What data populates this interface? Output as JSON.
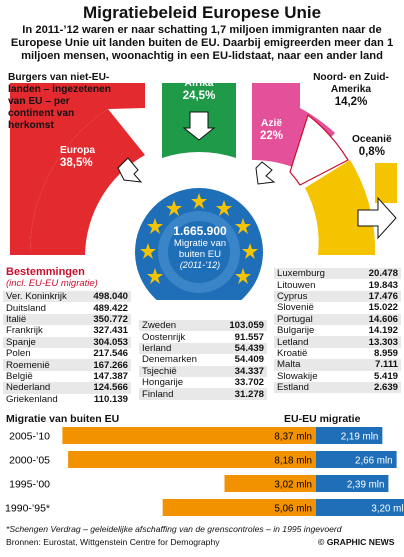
{
  "title": "Migratiebeleid Europese Unie",
  "intro": "In 2011-’12 waren er naar schatting 1,7 miljoen immigranten naar de Europese Unie uit landen buiten de EU. Daarbij emigreerden meer dan 1 miljoen mensen, woonachtig in een EU-lidstaat, naar een ander land",
  "colors": {
    "europa": "#e32a2f",
    "afrika": "#1f9a48",
    "azie": "#e4509a",
    "oceanie": "#f5c400",
    "eu_blue": "#1f6fb8",
    "orange": "#f39200",
    "red_text": "#c8102e"
  },
  "origins": {
    "intro_label": "Burgers van niet-EU-landen – ingezetenen van EU – per continent van herkomst",
    "segments": [
      {
        "name": "Europa",
        "value": "38,5%"
      },
      {
        "name": "Afrika",
        "value": "24,5%"
      },
      {
        "name": "Azië",
        "value": "22%"
      },
      {
        "name": "Noord- en Zuid-Amerika",
        "value": "14,2%"
      },
      {
        "name": "Oceanië",
        "value": "0,8%"
      }
    ]
  },
  "center": {
    "total": "1.665.900",
    "line1": "Migratie van",
    "line2": "buiten EU",
    "period": "(2011-’12)"
  },
  "destinations": {
    "heading": "Bestemmingen",
    "sub": "(incl. EU-EU migratie)",
    "left": [
      [
        "Ver. Koninkrijk",
        "498.040"
      ],
      [
        "Duitsland",
        "489.422"
      ],
      [
        "Italië",
        "350.772"
      ],
      [
        "Frankrijk",
        "327.431"
      ],
      [
        "Spanje",
        "304.053"
      ],
      [
        "Polen",
        "217.546"
      ],
      [
        "Roemenië",
        "167.266"
      ],
      [
        "België",
        "147.387"
      ],
      [
        "Nederland",
        "124.566"
      ],
      [
        "Griekenland",
        "110.139"
      ]
    ],
    "middle": [
      [
        "Zweden",
        "103.059"
      ],
      [
        "Oostenrijk",
        "91.557"
      ],
      [
        "Ierland",
        "54.439"
      ],
      [
        "Denemarken",
        "54.409"
      ],
      [
        "Tsjechië",
        "34.337"
      ],
      [
        "Hongarije",
        "33.702"
      ],
      [
        "Finland",
        "31.278"
      ]
    ],
    "right": [
      [
        "Luxemburg",
        "20.478"
      ],
      [
        "Litouwen",
        "19.843"
      ],
      [
        "Cyprus",
        "17.476"
      ],
      [
        "Slovenië",
        "15.022"
      ],
      [
        "Portugal",
        "14.606"
      ],
      [
        "Bulgarije",
        "14.192"
      ],
      [
        "Letland",
        "13.303"
      ],
      [
        "Kroatië",
        "8.959"
      ],
      [
        "Malta",
        "7.111"
      ],
      [
        "Slowakije",
        "5.419"
      ],
      [
        "Estland",
        "2.639"
      ]
    ]
  },
  "chart_data": {
    "type": "bar",
    "categories": [
      "2005-’10",
      "2000-’05",
      "1995-’00",
      "1990-’95*"
    ],
    "series": [
      {
        "name": "Migratie van buiten EU",
        "values": [
          8.37,
          8.18,
          3.02,
          5.06
        ],
        "labels": [
          "8,37 mln",
          "8,18 mln",
          "3,02 mln",
          "5,06 mln"
        ]
      },
      {
        "name": "EU-EU migratie",
        "values": [
          2.19,
          2.66,
          2.39,
          3.2
        ],
        "labels": [
          "2,19 mln",
          "2,66 mln",
          "2,39 mln",
          "3,20 mln"
        ]
      }
    ],
    "title": "",
    "xlabel": "",
    "ylabel": ""
  },
  "footnote": "*Schengen Verdrag – geleidelijke afschaffing van de grenscontroles – in 1995 ingevoerd",
  "source": "Bronnen: Eurostat, Wittgenstein Centre for Demography",
  "credit": "© GRAPHIC NEWS"
}
